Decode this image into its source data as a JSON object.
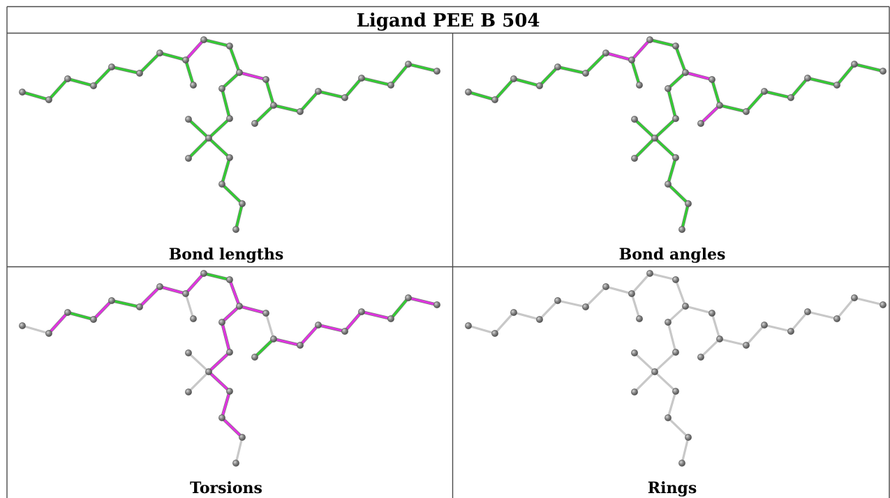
{
  "title": "Ligand PEE B 504",
  "panels": [
    {
      "caption": "Bond lengths",
      "mode": "lengths"
    },
    {
      "caption": "Bond angles",
      "mode": "angles"
    },
    {
      "caption": "Torsions",
      "mode": "torsions"
    },
    {
      "caption": "Rings",
      "mode": "rings"
    }
  ],
  "colors": {
    "ok": "#33cc33",
    "outlier": "#e033e0",
    "neutral": "#c8c8c8",
    "atom": "#7a7a7a"
  }
}
